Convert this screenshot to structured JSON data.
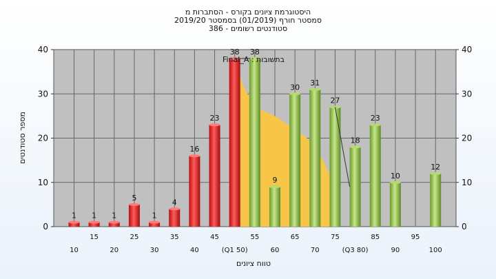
{
  "title_lines": [
    "היסטוגרמת ציונים בקורס - הסתברות מ",
    "2019/20 סמסטר חורף  (01/2019)  בסמסטר",
    "386 - סטודנטים רשומים"
  ],
  "chart_data": {
    "type": "bar",
    "xlabel": "טווח ציונים",
    "ylabel": "מספר סטודנטים",
    "ylim": [
      0,
      40
    ],
    "yticks": [
      0,
      10,
      20,
      30,
      40
    ],
    "legend_text": "Final_A : בתשובות",
    "grid": true,
    "categories": [
      "10",
      "15",
      "20",
      "25",
      "30",
      "35",
      "40",
      "45",
      "50",
      "55",
      "60",
      "65",
      "70",
      "75",
      "80",
      "85",
      "90",
      "95",
      "100"
    ],
    "tick_labels_row1": [
      "15",
      "25",
      "35",
      "45",
      "55",
      "65",
      "75",
      "85",
      "95"
    ],
    "tick_labels_row2": [
      "10",
      "20",
      "30",
      "40",
      "(Q1 50)",
      "60",
      "70",
      "(Q3 80)",
      "90",
      "100"
    ],
    "values": [
      1,
      1,
      1,
      5,
      1,
      4,
      16,
      23,
      38,
      38,
      9,
      30,
      31,
      27,
      18,
      23,
      10,
      0,
      12
    ],
    "bar_labels": [
      "1",
      "1",
      "1",
      "5",
      "1",
      "4",
      "16",
      "23",
      "38",
      "38",
      "9",
      "30",
      "31",
      "27",
      "18",
      "23",
      "10",
      "",
      "12"
    ],
    "fail_color": "#dd2222",
    "pass_color": "#8fc24a",
    "pass_from_index": 9,
    "curve": {
      "color": "#f7c548",
      "x": [
        50,
        52,
        55,
        60,
        65,
        68,
        70,
        72,
        74,
        75
      ],
      "y": [
        38,
        32,
        27,
        25,
        22,
        20,
        18,
        15,
        11,
        7
      ]
    }
  }
}
